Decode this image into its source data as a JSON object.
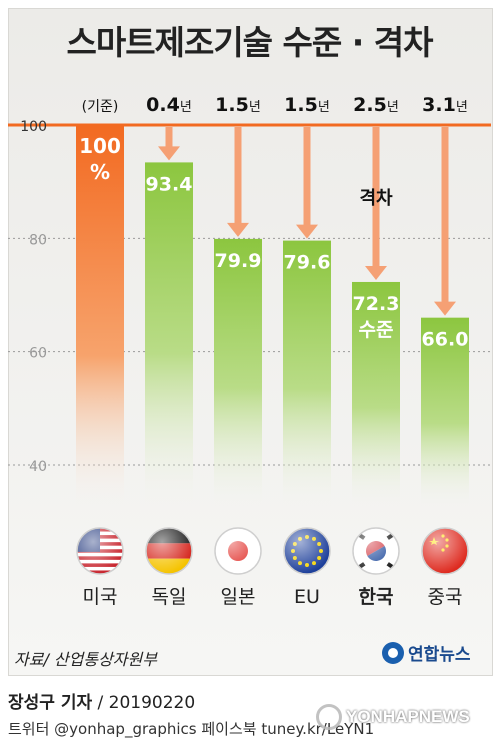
{
  "title": "스마트제조기술 수준 · 격차",
  "chart_data": {
    "type": "bar",
    "categories": [
      "미국",
      "독일",
      "일본",
      "EU",
      "한국",
      "중국"
    ],
    "values": [
      100,
      93.4,
      79.9,
      79.6,
      72.3,
      66.0
    ],
    "value_labels": [
      "100\n%",
      "93.4",
      "79.9",
      "79.6",
      "72.3\n수준",
      "66.0"
    ],
    "gap_labels": [
      "(기준)",
      "0.4년",
      "1.5년",
      "1.5년",
      "2.5년",
      "3.1년"
    ],
    "annotation": "격차",
    "highlight_category": "한국",
    "y_ticks": [
      100,
      80,
      60,
      40
    ],
    "ylim": [
      34,
      100
    ],
    "grid": true,
    "colors": {
      "reference": "#f26a21",
      "bars": "#8cc63f",
      "arrow": "#f5a074",
      "axis_line": "#f26a21"
    },
    "flags": [
      "us-flag-icon",
      "germany-flag-icon",
      "japan-flag-icon",
      "eu-flag-icon",
      "korea-flag-icon",
      "china-flag-icon"
    ]
  },
  "source": "자료/ 산업통상자원부",
  "brand": "연합뉴스",
  "reporter_name": "장성구 기자",
  "reporter_date": " / 20190220",
  "social": "트위터 @yonhap_graphics  페이스북 tuney.kr/LeYN1",
  "watermark": "YONHAPNEWS"
}
